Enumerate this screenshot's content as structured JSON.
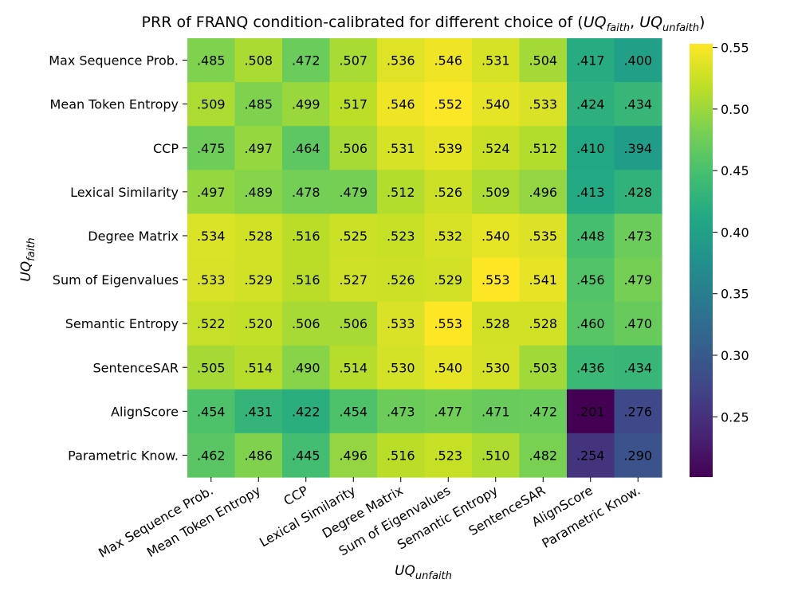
{
  "chart_data": {
    "type": "heatmap",
    "title_prefix": "PRR of FRANQ condition-calibrated for different choice of (",
    "title_var1_base": "UQ",
    "title_var1_sub": "faith",
    "title_sep": ", ",
    "title_var2_base": "UQ",
    "title_var2_sub": "unfaith",
    "title_suffix": ")",
    "xlabel_base": "UQ",
    "xlabel_sub": "unfaith",
    "ylabel_base": "UQ",
    "ylabel_sub": "faith",
    "row_labels": [
      "Max Sequence Prob.",
      "Mean Token Entropy",
      "CCP",
      "Lexical Similarity",
      "Degree Matrix",
      "Sum of Eigenvalues",
      "Semantic Entropy",
      "SentenceSAR",
      "AlignScore",
      "Parametric Know."
    ],
    "col_labels": [
      "Max Sequence Prob.",
      "Mean Token Entropy",
      "CCP",
      "Lexical Similarity",
      "Degree Matrix",
      "Sum of Eigenvalues",
      "Semantic Entropy",
      "SentenceSAR",
      "AlignScore",
      "Parametric Know."
    ],
    "values": [
      [
        0.485,
        0.508,
        0.472,
        0.507,
        0.536,
        0.546,
        0.531,
        0.504,
        0.417,
        0.4
      ],
      [
        0.509,
        0.485,
        0.499,
        0.517,
        0.546,
        0.552,
        0.54,
        0.533,
        0.424,
        0.434
      ],
      [
        0.475,
        0.497,
        0.464,
        0.506,
        0.531,
        0.539,
        0.524,
        0.512,
        0.41,
        0.394
      ],
      [
        0.497,
        0.489,
        0.478,
        0.479,
        0.512,
        0.526,
        0.509,
        0.496,
        0.413,
        0.428
      ],
      [
        0.534,
        0.528,
        0.516,
        0.525,
        0.523,
        0.532,
        0.54,
        0.535,
        0.448,
        0.473
      ],
      [
        0.533,
        0.529,
        0.516,
        0.527,
        0.526,
        0.529,
        0.553,
        0.541,
        0.456,
        0.479
      ],
      [
        0.522,
        0.52,
        0.506,
        0.506,
        0.533,
        0.553,
        0.528,
        0.528,
        0.46,
        0.47
      ],
      [
        0.505,
        0.514,
        0.49,
        0.514,
        0.53,
        0.54,
        0.53,
        0.503,
        0.436,
        0.434
      ],
      [
        0.454,
        0.431,
        0.422,
        0.454,
        0.473,
        0.477,
        0.471,
        0.472,
        0.201,
        0.276
      ],
      [
        0.462,
        0.486,
        0.445,
        0.496,
        0.516,
        0.523,
        0.51,
        0.482,
        0.254,
        0.29
      ]
    ],
    "value_labels": [
      [
        ".485",
        ".508",
        ".472",
        ".507",
        ".536",
        ".546",
        ".531",
        ".504",
        ".417",
        ".400"
      ],
      [
        ".509",
        ".485",
        ".499",
        ".517",
        ".546",
        ".552",
        ".540",
        ".533",
        ".424",
        ".434"
      ],
      [
        ".475",
        ".497",
        ".464",
        ".506",
        ".531",
        ".539",
        ".524",
        ".512",
        ".410",
        ".394"
      ],
      [
        ".497",
        ".489",
        ".478",
        ".479",
        ".512",
        ".526",
        ".509",
        ".496",
        ".413",
        ".428"
      ],
      [
        ".534",
        ".528",
        ".516",
        ".525",
        ".523",
        ".532",
        ".540",
        ".535",
        ".448",
        ".473"
      ],
      [
        ".533",
        ".529",
        ".516",
        ".527",
        ".526",
        ".529",
        ".553",
        ".541",
        ".456",
        ".479"
      ],
      [
        ".522",
        ".520",
        ".506",
        ".506",
        ".533",
        ".553",
        ".528",
        ".528",
        ".460",
        ".470"
      ],
      [
        ".505",
        ".514",
        ".490",
        ".514",
        ".530",
        ".540",
        ".530",
        ".503",
        ".436",
        ".434"
      ],
      [
        ".454",
        ".431",
        ".422",
        ".454",
        ".473",
        ".477",
        ".471",
        ".472",
        ".201",
        ".276"
      ],
      [
        ".462",
        ".486",
        ".445",
        ".496",
        ".516",
        ".523",
        ".510",
        ".482",
        ".254",
        ".290"
      ]
    ],
    "vmin": 0.201,
    "vmax": 0.553,
    "colormap": "viridis",
    "colorbar_ticks": [
      0.25,
      0.3,
      0.35,
      0.4,
      0.45,
      0.5,
      0.55
    ],
    "colorbar_tick_labels": [
      "0.25",
      "0.30",
      "0.35",
      "0.40",
      "0.45",
      "0.50",
      "0.55"
    ]
  }
}
